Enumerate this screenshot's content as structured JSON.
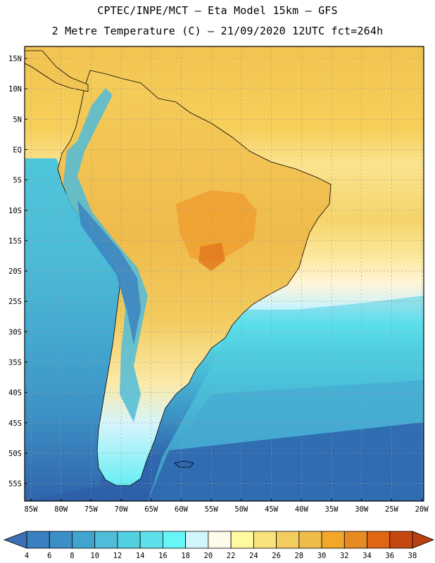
{
  "title_line1": "CPTEC/INPE/MCT –  Eta Model 15km – GFS",
  "title_line2": "2 Metre Temperature (C) – 21/09/2020 12UTC fct=264h",
  "lat_labels": [
    "15N",
    "10N",
    "5N",
    "EQ",
    "5S",
    "10S",
    "15S",
    "20S",
    "25S",
    "30S",
    "35S",
    "40S",
    "45S",
    "50S",
    "55S"
  ],
  "lat_values": [
    15,
    10,
    5,
    0,
    -5,
    -10,
    -15,
    -20,
    -25,
    -30,
    -35,
    -40,
    -45,
    -50,
    -55
  ],
  "lon_labels": [
    "85W",
    "80W",
    "75W",
    "70W",
    "65W",
    "60W",
    "55W",
    "50W",
    "45W",
    "40W",
    "35W",
    "30W",
    "25W",
    "20W"
  ],
  "lon_values": [
    -85,
    -80,
    -75,
    -70,
    -65,
    -60,
    -55,
    -50,
    -45,
    -40,
    -35,
    -30,
    -25,
    -20
  ],
  "colorbar": {
    "labels": [
      "4",
      "6",
      "8",
      "10",
      "12",
      "14",
      "16",
      "18",
      "20",
      "22",
      "24",
      "26",
      "28",
      "30",
      "32",
      "34",
      "36",
      "38"
    ],
    "colors": [
      "#3a7fbf",
      "#3b8fc6",
      "#41a4cf",
      "#4fbcd9",
      "#52cfe0",
      "#5ee0ea",
      "#66f6f8",
      "#d0f6fc",
      "#fffbea",
      "#fff9a0",
      "#fae37c",
      "#f3cc5e",
      "#efbc4c",
      "#f2a72b",
      "#e88a22",
      "#de6614",
      "#c64810"
    ],
    "low_color": "#3d6fb4",
    "high_color": "#bb4011"
  }
}
